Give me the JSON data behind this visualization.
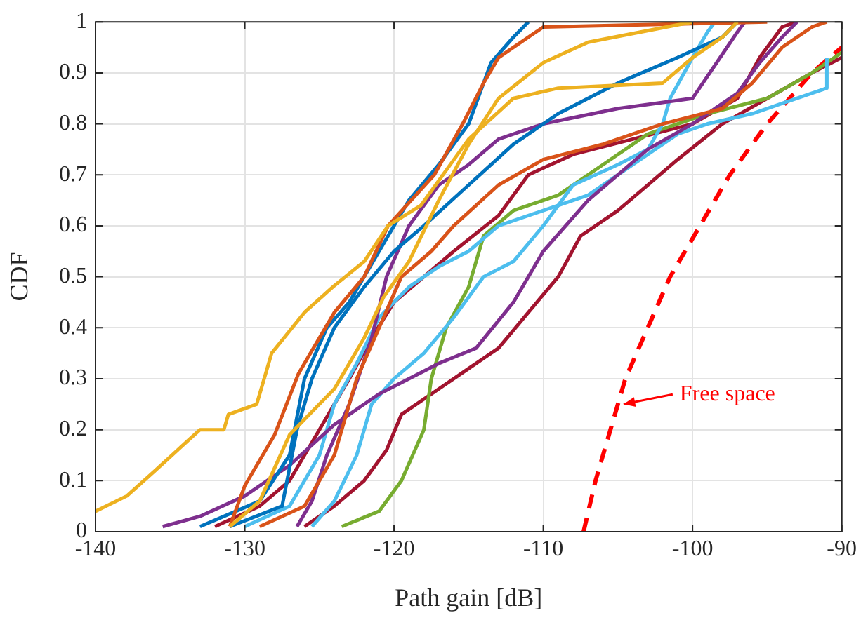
{
  "chart_data": {
    "type": "line",
    "xlabel": "Path gain [dB]",
    "ylabel": "CDF",
    "xlim": [
      -140,
      -90
    ],
    "xticks": [
      -140,
      -130,
      -120,
      -110,
      -100,
      -90
    ],
    "ylim": [
      0,
      1
    ],
    "yticks": [
      0,
      0.1,
      0.2,
      0.3,
      0.4,
      0.5,
      0.6,
      0.7,
      0.8,
      0.9,
      1
    ],
    "grid": true,
    "annotations": [
      {
        "text": "Free space",
        "x": -105,
        "y": 0.25
      }
    ],
    "marker": "none",
    "line_style": "solid",
    "series": [
      {
        "color": "#edb120",
        "x": [
          -140,
          -137.9,
          -136,
          -133,
          -131.4,
          -131.1,
          -129.2,
          -128.2,
          -126,
          -124.1,
          -122,
          -120.4,
          -118.2,
          -115,
          -112,
          -109,
          -102,
          -100,
          -98,
          -97
        ],
        "values": [
          0.04,
          0.07,
          0.12,
          0.2,
          0.2,
          0.23,
          0.25,
          0.35,
          0.43,
          0.48,
          0.53,
          0.6,
          0.64,
          0.77,
          0.85,
          0.87,
          0.88,
          0.93,
          0.97,
          1
        ]
      },
      {
        "color": "#edb120",
        "x": [
          -131,
          -129,
          -127,
          -126,
          -124,
          -122,
          -120.7,
          -119,
          -117,
          -115,
          -113,
          -110,
          -107,
          -100
        ],
        "values": [
          0.01,
          0.06,
          0.19,
          0.22,
          0.28,
          0.38,
          0.46,
          0.53,
          0.65,
          0.76,
          0.85,
          0.92,
          0.96,
          1
        ]
      },
      {
        "color": "#d95319",
        "x": [
          -131,
          -130,
          -128,
          -126.4,
          -124,
          -122,
          -120.4,
          -117.3,
          -115.4,
          -114,
          -113,
          -111,
          -110,
          -95
        ],
        "values": [
          0.01,
          0.09,
          0.19,
          0.31,
          0.43,
          0.5,
          0.6,
          0.7,
          0.8,
          0.88,
          0.93,
          0.97,
          0.99,
          1
        ]
      },
      {
        "color": "#0072bd",
        "x": [
          -133,
          -129,
          -127,
          -126,
          -124.5,
          -123,
          -121,
          -119,
          -117,
          -115,
          -113.5,
          -112,
          -111
        ],
        "values": [
          0.01,
          0.06,
          0.15,
          0.3,
          0.4,
          0.45,
          0.55,
          0.65,
          0.72,
          0.8,
          0.92,
          0.97,
          1
        ]
      },
      {
        "color": "#d95319",
        "x": [
          -129,
          -126,
          -124,
          -122.5,
          -121,
          -119.5,
          -117.5,
          -116,
          -113,
          -110,
          -106,
          -102,
          -98,
          -96,
          -94,
          -92,
          -91
        ],
        "values": [
          0.01,
          0.05,
          0.15,
          0.3,
          0.4,
          0.5,
          0.55,
          0.6,
          0.68,
          0.73,
          0.76,
          0.8,
          0.83,
          0.88,
          0.95,
          0.99,
          1
        ]
      },
      {
        "color": "#0072bd",
        "x": [
          -131,
          -127.5,
          -126.5,
          -125.5,
          -124,
          -122,
          -120,
          -118,
          -115,
          -112,
          -109,
          -105,
          -101,
          -98,
          -97
        ],
        "values": [
          0.01,
          0.05,
          0.2,
          0.3,
          0.4,
          0.48,
          0.55,
          0.6,
          0.68,
          0.76,
          0.82,
          0.88,
          0.93,
          0.97,
          1
        ]
      },
      {
        "color": "#7e2f8e",
        "x": [
          -135.5,
          -133,
          -130,
          -127,
          -124,
          -121,
          -117,
          -114.5,
          -112,
          -110,
          -107,
          -103,
          -100,
          -97,
          -95.5,
          -94,
          -93
        ],
        "values": [
          0.01,
          0.03,
          0.07,
          0.13,
          0.21,
          0.27,
          0.33,
          0.36,
          0.45,
          0.55,
          0.65,
          0.75,
          0.8,
          0.86,
          0.92,
          0.97,
          1
        ]
      },
      {
        "color": "#7e2f8e",
        "x": [
          -126.5,
          -125.5,
          -124.5,
          -123,
          -121.5,
          -120.5,
          -119,
          -117,
          -115,
          -113,
          -110,
          -105,
          -100,
          -97,
          -96.5
        ],
        "values": [
          0.01,
          0.06,
          0.15,
          0.25,
          0.38,
          0.5,
          0.6,
          0.68,
          0.72,
          0.77,
          0.8,
          0.83,
          0.85,
          0.98,
          1
        ]
      },
      {
        "color": "#4dbeee",
        "x": [
          -130,
          -127,
          -125,
          -124,
          -122.5,
          -121,
          -119,
          -117,
          -115,
          -113,
          -110,
          -107,
          -104,
          -101,
          -99,
          -96,
          -94,
          -91,
          -91
        ],
        "values": [
          0.01,
          0.05,
          0.15,
          0.25,
          0.33,
          0.42,
          0.48,
          0.52,
          0.55,
          0.6,
          0.63,
          0.66,
          0.72,
          0.78,
          0.8,
          0.82,
          0.84,
          0.87,
          0.93
        ]
      },
      {
        "color": "#4dbeee",
        "x": [
          -125.5,
          -124,
          -122.5,
          -121.5,
          -120,
          -118,
          -116,
          -114,
          -112,
          -110,
          -108,
          -105,
          -103,
          -102,
          -101.5,
          -100,
          -99,
          -98.5
        ],
        "values": [
          0.01,
          0.06,
          0.15,
          0.25,
          0.3,
          0.35,
          0.42,
          0.5,
          0.53,
          0.6,
          0.68,
          0.72,
          0.75,
          0.8,
          0.85,
          0.93,
          0.98,
          1
        ]
      },
      {
        "color": "#77ac30",
        "x": [
          -123.5,
          -121,
          -119.5,
          -118,
          -117.5,
          -116.5,
          -115,
          -114,
          -112,
          -109,
          -106,
          -103,
          -99,
          -95,
          -92,
          -90
        ],
        "values": [
          0.01,
          0.04,
          0.1,
          0.2,
          0.3,
          0.4,
          0.48,
          0.58,
          0.63,
          0.66,
          0.72,
          0.78,
          0.82,
          0.85,
          0.9,
          0.94
        ]
      },
      {
        "color": "#a2142f",
        "x": [
          -126,
          -124,
          -122,
          -120.5,
          -119.5,
          -117,
          -115,
          -113,
          -111,
          -109,
          -107.5,
          -105,
          -103,
          -101,
          -98,
          -95,
          -92,
          -90
        ],
        "values": [
          0.01,
          0.05,
          0.1,
          0.16,
          0.23,
          0.28,
          0.32,
          0.36,
          0.43,
          0.5,
          0.58,
          0.63,
          0.68,
          0.73,
          0.8,
          0.85,
          0.9,
          0.93
        ]
      },
      {
        "color": "#a2142f",
        "x": [
          -132,
          -129,
          -127,
          -125,
          -123,
          -121.5,
          -120,
          -118,
          -116,
          -113,
          -111,
          -108,
          -104,
          -100,
          -97,
          -95.5,
          -94,
          -93
        ],
        "values": [
          0.01,
          0.05,
          0.1,
          0.2,
          0.3,
          0.38,
          0.45,
          0.5,
          0.55,
          0.62,
          0.7,
          0.74,
          0.77,
          0.8,
          0.85,
          0.93,
          0.99,
          1
        ]
      },
      {
        "color": "#ff0000",
        "line_style": "dashed",
        "x": [
          -107.3,
          -106.5,
          -105.5,
          -104.5,
          -103,
          -101.5,
          -99.5,
          -97.5,
          -95,
          -92,
          -90
        ],
        "values": [
          0,
          0.1,
          0.2,
          0.3,
          0.4,
          0.5,
          0.6,
          0.7,
          0.8,
          0.9,
          0.95
        ]
      }
    ]
  }
}
